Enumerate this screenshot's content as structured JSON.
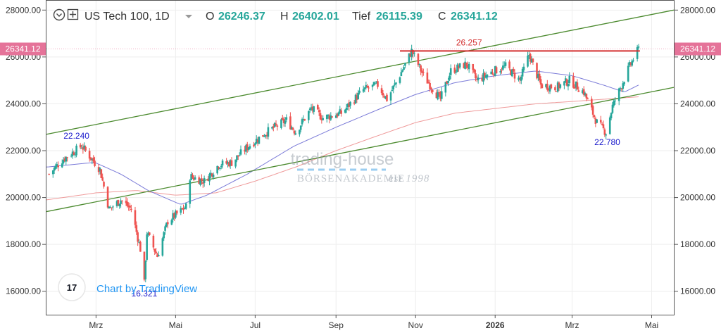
{
  "legend": {
    "symbol": "US Tech 100, 1D",
    "open_label": "O",
    "open_value": "26246.37",
    "high_label": "H",
    "high_value": "26402.01",
    "low_label": "Tief",
    "low_value": "26115.39",
    "close_label": "C",
    "close_value": "26341.12"
  },
  "price_tag": "26341.12",
  "annotations": {
    "resistance": "26.257",
    "low_left": "16.321",
    "high_left": "22.240",
    "low_right": "22.780"
  },
  "watermark": {
    "brand": "trading-house",
    "sub": "BÖRSENAKADEMIE",
    "est": "est 1998"
  },
  "tradingview": {
    "text": "Chart by TradingView",
    "logo": "17"
  },
  "colors": {
    "up": "#26a69a",
    "down": "#ef5350",
    "ma50": "#7b7bd8",
    "ma200": "#ef9a9a",
    "channel": "#4b8a2e",
    "resistance": "#d32f2f",
    "price_tag_bg": "#e57399"
  },
  "chart_data": {
    "type": "candlestick",
    "title": "US Tech 100, 1D",
    "ylim": [
      15000,
      28400
    ],
    "y_ticks": [
      "16000.00",
      "18000.00",
      "20000.00",
      "22000.00",
      "24000.00",
      "26000.00",
      "28000.00"
    ],
    "x_ticks": [
      {
        "label": "Mrz",
        "date": "2025-03-01"
      },
      {
        "label": "Mai",
        "date": "2025-05-01"
      },
      {
        "label": "Jul",
        "date": "2025-07-01"
      },
      {
        "label": "Sep",
        "date": "2025-09-01"
      },
      {
        "label": "Nov",
        "date": "2025-11-01"
      },
      {
        "label": "2026",
        "date": "2026-01-01",
        "bold": true
      },
      {
        "label": "Mrz",
        "date": "2026-03-01"
      },
      {
        "label": "Mai",
        "date": "2026-05-01"
      }
    ],
    "x_start": "2025-01-22",
    "x_end": "2026-05-18",
    "close_path": [
      [
        "2025-01-24",
        21000
      ],
      [
        "2025-02-03",
        21600
      ],
      [
        "2025-02-18",
        22200
      ],
      [
        "2025-03-04",
        21200
      ],
      [
        "2025-03-11",
        19500
      ],
      [
        "2025-03-20",
        19900
      ],
      [
        "2025-03-28",
        19500
      ],
      [
        "2025-04-04",
        17800
      ],
      [
        "2025-04-07",
        16321
      ],
      [
        "2025-04-09",
        18500
      ],
      [
        "2025-04-17",
        17500
      ],
      [
        "2025-04-25",
        19000
      ],
      [
        "2025-05-09",
        19600
      ],
      [
        "2025-05-12",
        20900
      ],
      [
        "2025-05-23",
        20700
      ],
      [
        "2025-06-03",
        21400
      ],
      [
        "2025-06-13",
        21500
      ],
      [
        "2025-06-26",
        22200
      ],
      [
        "2025-07-10",
        22800
      ],
      [
        "2025-07-25",
        23300
      ],
      [
        "2025-08-01",
        22800
      ],
      [
        "2025-08-13",
        23800
      ],
      [
        "2025-08-22",
        23400
      ],
      [
        "2025-09-05",
        23600
      ],
      [
        "2025-09-22",
        24600
      ],
      [
        "2025-10-03",
        24800
      ],
      [
        "2025-10-10",
        24200
      ],
      [
        "2025-10-17",
        24900
      ],
      [
        "2025-10-29",
        26257
      ],
      [
        "2025-11-07",
        25200
      ],
      [
        "2025-11-20",
        24200
      ],
      [
        "2025-11-28",
        25400
      ],
      [
        "2025-12-10",
        25700
      ],
      [
        "2025-12-18",
        25000
      ],
      [
        "2025-12-31",
        25400
      ],
      [
        "2026-01-09",
        25600
      ],
      [
        "2026-01-20",
        25000
      ],
      [
        "2026-01-27",
        26100
      ],
      [
        "2026-02-05",
        24800
      ],
      [
        "2026-02-17",
        24700
      ],
      [
        "2026-02-27",
        25000
      ],
      [
        "2026-03-10",
        24500
      ],
      [
        "2026-03-20",
        23200
      ],
      [
        "2026-03-27",
        22780
      ],
      [
        "2026-04-01",
        23900
      ],
      [
        "2026-04-08",
        24800
      ],
      [
        "2026-04-14",
        25600
      ],
      [
        "2026-04-21",
        26341
      ]
    ],
    "ma50": [
      [
        "2025-01-22",
        21300
      ],
      [
        "2025-02-28",
        21500
      ],
      [
        "2025-03-20",
        21000
      ],
      [
        "2025-04-10",
        20300
      ],
      [
        "2025-05-05",
        19700
      ],
      [
        "2025-05-25",
        20100
      ],
      [
        "2025-06-25",
        21000
      ],
      [
        "2025-07-31",
        22200
      ],
      [
        "2025-09-01",
        23000
      ],
      [
        "2025-10-01",
        23700
      ],
      [
        "2025-11-01",
        24400
      ],
      [
        "2025-12-01",
        24900
      ],
      [
        "2026-01-01",
        25200
      ],
      [
        "2026-02-01",
        25400
      ],
      [
        "2026-03-01",
        25200
      ],
      [
        "2026-03-25",
        24800
      ],
      [
        "2026-04-10",
        24500
      ],
      [
        "2026-04-21",
        24800
      ]
    ],
    "ma200": [
      [
        "2025-01-22",
        19900
      ],
      [
        "2025-03-01",
        20200
      ],
      [
        "2025-04-01",
        20300
      ],
      [
        "2025-05-01",
        20100
      ],
      [
        "2025-06-01",
        20200
      ],
      [
        "2025-07-01",
        20700
      ],
      [
        "2025-08-01",
        21300
      ],
      [
        "2025-09-01",
        22000
      ],
      [
        "2025-10-01",
        22600
      ],
      [
        "2025-11-01",
        23200
      ],
      [
        "2025-12-01",
        23600
      ],
      [
        "2026-01-01",
        23800
      ],
      [
        "2026-02-01",
        24000
      ],
      [
        "2026-03-01",
        24100
      ],
      [
        "2026-04-21",
        24300
      ]
    ],
    "channel_upper": [
      [
        "2025-01-22",
        22700
      ],
      [
        "2026-05-18",
        28000
      ]
    ],
    "channel_lower": [
      [
        "2025-01-22",
        19400
      ],
      [
        "2026-05-18",
        24700
      ]
    ],
    "resistance": {
      "value": 26257,
      "from": "2025-10-20",
      "to": "2026-04-22"
    },
    "last_close": 26341.12,
    "grid": true
  }
}
